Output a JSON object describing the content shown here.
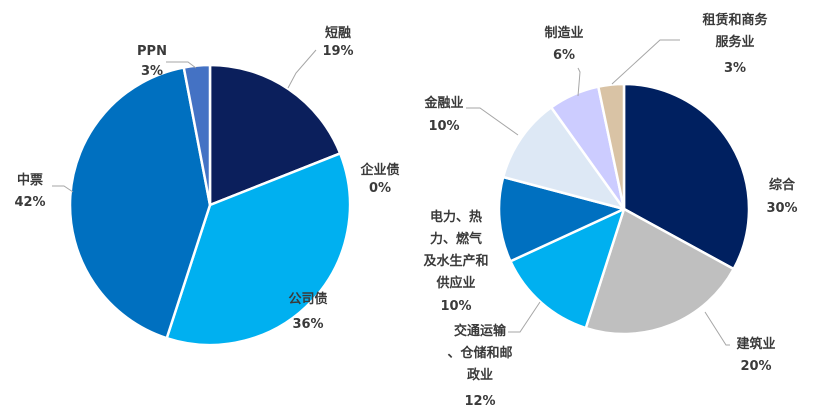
{
  "chart_data": [
    {
      "type": "pie",
      "title": "",
      "slices": [
        {
          "name": "短融",
          "value": 19,
          "label": "19%",
          "color": "#0b1f5c"
        },
        {
          "name": "企业债",
          "value": 0,
          "label": "0%",
          "color": "#0b1f5c"
        },
        {
          "name": "公司债",
          "value": 36,
          "label": "36%",
          "color": "#00b0f0"
        },
        {
          "name": "中票",
          "value": 42,
          "label": "42%",
          "color": "#0070c0"
        },
        {
          "name": "PPN",
          "value": 3,
          "label": "3%",
          "color": "#4472c4"
        }
      ]
    },
    {
      "type": "pie",
      "title": "",
      "slices": [
        {
          "name": "综合",
          "value": 30,
          "label": "30%",
          "color": "#002060"
        },
        {
          "name": "建筑业",
          "value": 20,
          "label": "20%",
          "color": "#bfbfbf"
        },
        {
          "name": "交通运输、仓储和邮政业",
          "value": 12,
          "label": "12%",
          "color": "#00b0f0"
        },
        {
          "name": "电力、热力、燃气及水生产和供应业",
          "value": 10,
          "label": "10%",
          "color": "#0070c0"
        },
        {
          "name": "金融业",
          "value": 10,
          "label": "10%",
          "color": "#dde8f5"
        },
        {
          "name": "制造业",
          "value": 6,
          "label": "6%",
          "color": "#ccccff"
        },
        {
          "name": "租赁和商务服务业",
          "value": 3,
          "label": "3%",
          "color": "#d9c3a5"
        }
      ]
    }
  ]
}
